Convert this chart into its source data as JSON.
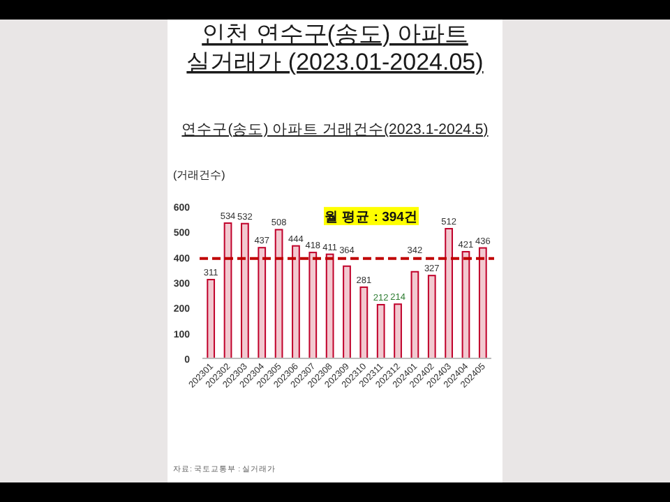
{
  "chart_data": {
    "type": "bar",
    "title": "인천 연수구(송도) 아파트 실거래가 (2023.01-2024.05)",
    "subtitle": "연수구(송도) 아파트 거래건수(2023.1-2024.5)",
    "ylabel": "(거래건수)",
    "categories": [
      "202301",
      "202302",
      "202303",
      "202304",
      "202305",
      "202306",
      "202307",
      "202308",
      "202309",
      "202310",
      "202311",
      "202312",
      "202401",
      "202402",
      "202403",
      "202404",
      "202405"
    ],
    "values": [
      311,
      534,
      532,
      437,
      508,
      444,
      418,
      411,
      364,
      281,
      212,
      214,
      342,
      327,
      512,
      421,
      436
    ],
    "color": "#f2c9d0",
    "ylim": [
      0,
      600
    ],
    "yticks": [
      0,
      100,
      200,
      300,
      400,
      500,
      600
    ],
    "data_labels": true,
    "ref_lines": [
      {
        "axis": "y",
        "value": 394,
        "label": "월 평균 : 394건",
        "color": "#c00000",
        "line_style": "dashed"
      }
    ],
    "annotations": [
      "자료: 국토교통부 : 실거래가"
    ]
  }
}
